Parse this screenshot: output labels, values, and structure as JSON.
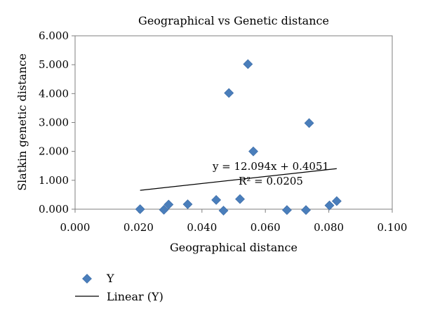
{
  "chart_data": {
    "type": "scatter",
    "title": "Geographical vs Genetic distance",
    "xlabel": "Geographical distance",
    "ylabel": "Slatkin genetic distance",
    "xlim": [
      0.0,
      0.1
    ],
    "ylim": [
      0.0,
      6.0
    ],
    "x_ticks": [
      "0.000",
      "0.020",
      "0.040",
      "0.060",
      "0.080",
      "0.100"
    ],
    "y_ticks": [
      "0.000",
      "1.000",
      "2.000",
      "3.000",
      "4.000",
      "5.000",
      "6.000"
    ],
    "grid": false,
    "legend_position": "bottom-left",
    "series": [
      {
        "name": "Y",
        "marker": "diamond",
        "color": "#4a7ebb",
        "points": [
          {
            "x": 0.0205,
            "y": 0.0
          },
          {
            "x": 0.028,
            "y": -0.02
          },
          {
            "x": 0.0295,
            "y": 0.16
          },
          {
            "x": 0.0355,
            "y": 0.17
          },
          {
            "x": 0.0445,
            "y": 0.32
          },
          {
            "x": 0.0468,
            "y": -0.05
          },
          {
            "x": 0.0485,
            "y": 4.02
          },
          {
            "x": 0.052,
            "y": 0.35
          },
          {
            "x": 0.0545,
            "y": 5.02
          },
          {
            "x": 0.0562,
            "y": 2.0
          },
          {
            "x": 0.0668,
            "y": -0.03
          },
          {
            "x": 0.0728,
            "y": -0.03
          },
          {
            "x": 0.0738,
            "y": 2.98
          },
          {
            "x": 0.0802,
            "y": 0.13
          },
          {
            "x": 0.0825,
            "y": 0.28
          }
        ]
      }
    ],
    "trendline": {
      "name": "Linear (Y)",
      "type": "linear",
      "color": "#000000",
      "slope": 12.094,
      "intercept": 0.4051,
      "x_range": [
        0.0205,
        0.0825
      ],
      "equation": "y = 12.094x + 0.4051",
      "r_squared": "R² = 0.0205"
    }
  }
}
